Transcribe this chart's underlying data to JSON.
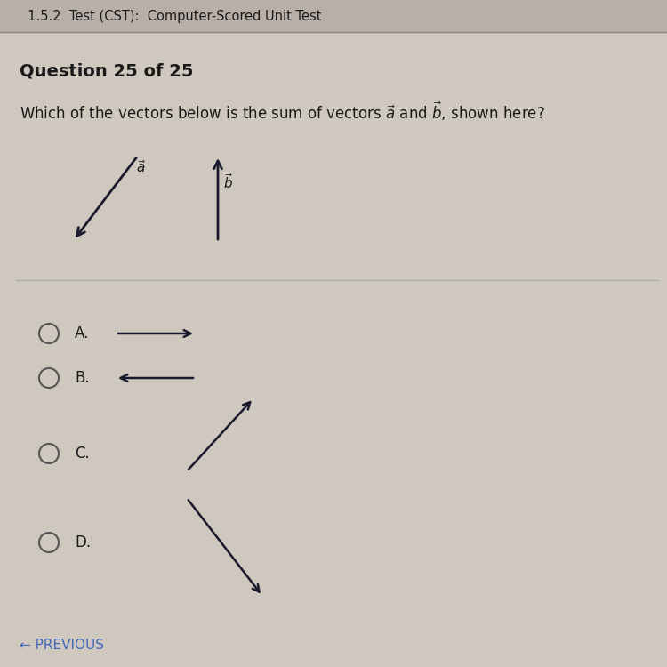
{
  "background_color": "#cfc8be",
  "header_bg": "#b8b0a8",
  "header_text": "  1.5.2  Test (CST):  Computer-Scored Unit Test",
  "question_label": "Question 25 of 25",
  "question_text_pre": "Which of the vectors below is the sum of vectors ",
  "question_text_post": " and ",
  "question_text_end": ", shown here?",
  "vec_a": "a",
  "vec_b": "b",
  "options": [
    "A.",
    "B.",
    "C.",
    "D."
  ],
  "footer_text": "← PREVIOUS",
  "arrow_color": "#1a1a2e",
  "text_color": "#1a1a1a",
  "option_circle_color": "#555555",
  "footer_color": "#4466bb",
  "separator_color": "#aaaaaa",
  "figsize": [
    7.5,
    7.5
  ],
  "dpi": 100
}
